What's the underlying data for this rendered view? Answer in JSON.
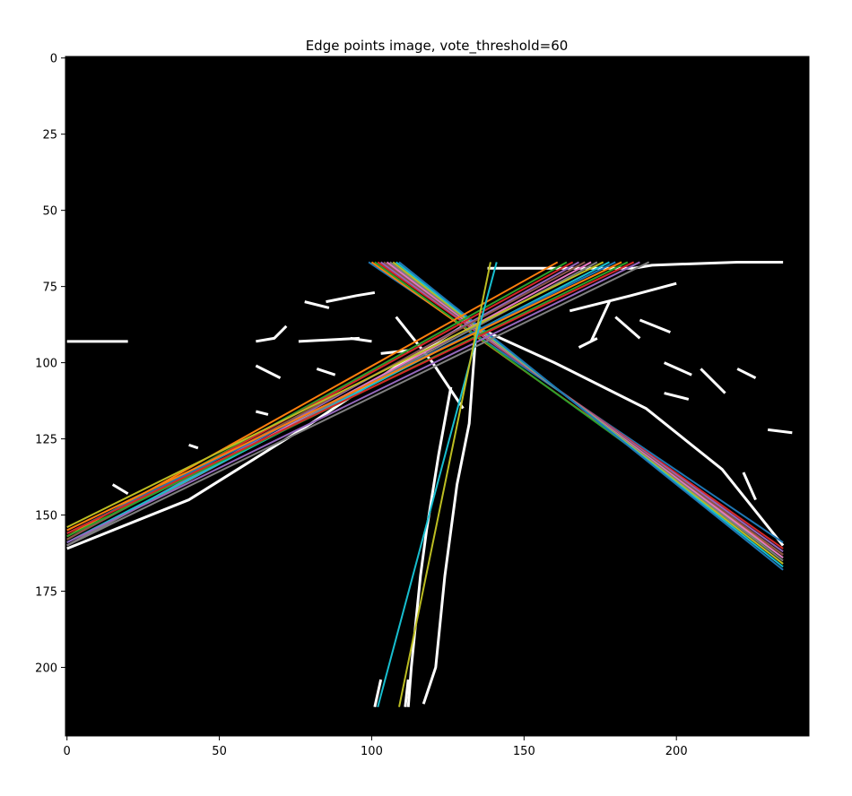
{
  "chart_data": {
    "type": "image_with_lines",
    "title": "Edge points image, vote_threshold=60",
    "xlabel": "",
    "ylabel": "",
    "xlim": [
      -0.5,
      243.5
    ],
    "ylim": [
      222.5,
      -0.5
    ],
    "x_ticks": [
      0,
      50,
      100,
      150,
      200
    ],
    "y_ticks": [
      0,
      25,
      50,
      75,
      100,
      125,
      150,
      175,
      200
    ],
    "grid": false,
    "background": "#000000",
    "edge_color": "#ffffff",
    "edge_segments": [
      [
        [
          138,
          69
        ],
        [
          186,
          69
        ],
        [
          192,
          68
        ],
        [
          220,
          67
        ],
        [
          235,
          67
        ]
      ],
      [
        [
          200,
          74
        ],
        [
          185,
          78
        ],
        [
          165,
          83
        ]
      ],
      [
        [
          108,
          85
        ],
        [
          120,
          100
        ],
        [
          130,
          115
        ]
      ],
      [
        [
          126,
          108
        ],
        [
          122,
          130
        ],
        [
          118,
          155
        ],
        [
          116,
          170
        ],
        [
          113,
          200
        ],
        [
          112,
          213
        ]
      ],
      [
        [
          134,
          93
        ],
        [
          132,
          120
        ],
        [
          128,
          140
        ],
        [
          124,
          170
        ],
        [
          121,
          200
        ],
        [
          117,
          212
        ]
      ],
      [
        [
          103,
          204
        ],
        [
          101,
          213
        ]
      ],
      [
        [
          112,
          204
        ],
        [
          111,
          213
        ]
      ],
      [
        [
          0,
          161
        ],
        [
          40,
          145
        ],
        [
          80,
          120
        ],
        [
          110,
          100
        ],
        [
          130,
          88
        ]
      ],
      [
        [
          138,
          90
        ],
        [
          160,
          100
        ],
        [
          190,
          115
        ],
        [
          215,
          135
        ],
        [
          235,
          160
        ]
      ],
      [
        [
          85,
          80
        ],
        [
          95,
          78
        ],
        [
          101,
          77
        ]
      ],
      [
        [
          72,
          88
        ],
        [
          68,
          92
        ],
        [
          62,
          93
        ]
      ],
      [
        [
          76,
          93
        ],
        [
          96,
          92
        ]
      ],
      [
        [
          78,
          80
        ],
        [
          86,
          82
        ]
      ],
      [
        [
          93,
          92
        ],
        [
          100,
          93
        ]
      ],
      [
        [
          103,
          97
        ],
        [
          112,
          96
        ]
      ],
      [
        [
          0,
          93
        ],
        [
          20,
          93
        ]
      ],
      [
        [
          62,
          101
        ],
        [
          70,
          105
        ]
      ],
      [
        [
          82,
          102
        ],
        [
          88,
          104
        ]
      ],
      [
        [
          62,
          116
        ],
        [
          66,
          117
        ]
      ],
      [
        [
          40,
          127
        ],
        [
          43,
          128
        ]
      ],
      [
        [
          20,
          143
        ],
        [
          15,
          140
        ]
      ],
      [
        [
          178,
          80
        ],
        [
          172,
          93
        ]
      ],
      [
        [
          180,
          85
        ],
        [
          188,
          92
        ]
      ],
      [
        [
          196,
          100
        ],
        [
          205,
          104
        ]
      ],
      [
        [
          196,
          110
        ],
        [
          204,
          112
        ]
      ],
      [
        [
          208,
          102
        ],
        [
          216,
          110
        ]
      ],
      [
        [
          220,
          102
        ],
        [
          226,
          105
        ]
      ],
      [
        [
          222,
          136
        ],
        [
          226,
          145
        ]
      ],
      [
        [
          230,
          122
        ],
        [
          238,
          123
        ]
      ],
      [
        [
          188,
          86
        ],
        [
          198,
          90
        ]
      ],
      [
        [
          174,
          92
        ],
        [
          168,
          95
        ]
      ]
    ],
    "series": [
      {
        "color": "#1f77b4",
        "values": [
          [
            99,
            67
          ],
          [
            235,
            159
          ]
        ]
      },
      {
        "color": "#ff7f0e",
        "values": [
          [
            100,
            67
          ],
          [
            235,
            163
          ]
        ]
      },
      {
        "color": "#2ca02c",
        "values": [
          [
            101,
            67
          ],
          [
            235,
            164
          ]
        ]
      },
      {
        "color": "#d62728",
        "values": [
          [
            102,
            67
          ],
          [
            235,
            161
          ]
        ]
      },
      {
        "color": "#9467bd",
        "values": [
          [
            103,
            67
          ],
          [
            235,
            162
          ]
        ]
      },
      {
        "color": "#8c564b",
        "values": [
          [
            104,
            67
          ],
          [
            235,
            163
          ]
        ]
      },
      {
        "color": "#e377c2",
        "values": [
          [
            105,
            67
          ],
          [
            235,
            164
          ]
        ]
      },
      {
        "color": "#7f7f7f",
        "values": [
          [
            106,
            67
          ],
          [
            235,
            165
          ]
        ]
      },
      {
        "color": "#bcbd22",
        "values": [
          [
            107,
            67
          ],
          [
            235,
            166
          ]
        ]
      },
      {
        "color": "#17becf",
        "values": [
          [
            108,
            67
          ],
          [
            235,
            167
          ]
        ]
      },
      {
        "color": "#1f77b4",
        "values": [
          [
            109,
            67
          ],
          [
            235,
            168
          ]
        ]
      },
      {
        "color": "#ff7f0e",
        "values": [
          [
            161,
            67
          ],
          [
            0,
            157
          ]
        ]
      },
      {
        "color": "#2ca02c",
        "values": [
          [
            164,
            67
          ],
          [
            0,
            158
          ]
        ]
      },
      {
        "color": "#d62728",
        "values": [
          [
            166,
            67
          ],
          [
            0,
            158
          ]
        ]
      },
      {
        "color": "#9467bd",
        "values": [
          [
            168,
            67
          ],
          [
            0,
            160
          ]
        ]
      },
      {
        "color": "#8c564b",
        "values": [
          [
            170,
            67
          ],
          [
            0,
            158
          ]
        ]
      },
      {
        "color": "#e377c2",
        "values": [
          [
            172,
            67
          ],
          [
            0,
            160
          ]
        ]
      },
      {
        "color": "#7f7f7f",
        "values": [
          [
            174,
            67
          ],
          [
            0,
            160
          ]
        ]
      },
      {
        "color": "#bcbd22",
        "values": [
          [
            176,
            67
          ],
          [
            0,
            154
          ]
        ]
      },
      {
        "color": "#17becf",
        "values": [
          [
            178,
            67
          ],
          [
            0,
            159
          ]
        ]
      },
      {
        "color": "#1f77b4",
        "values": [
          [
            180,
            67
          ],
          [
            0,
            156
          ]
        ]
      },
      {
        "color": "#ff7f0e",
        "values": [
          [
            182,
            67
          ],
          [
            0,
            155
          ]
        ]
      },
      {
        "color": "#2ca02c",
        "values": [
          [
            184,
            67
          ],
          [
            0,
            157
          ]
        ]
      },
      {
        "color": "#d62728",
        "values": [
          [
            186,
            67
          ],
          [
            0,
            156
          ]
        ]
      },
      {
        "color": "#9467bd",
        "values": [
          [
            188,
            67
          ],
          [
            0,
            159
          ]
        ]
      },
      {
        "color": "#7f7f7f",
        "values": [
          [
            191,
            67
          ],
          [
            0,
            160
          ]
        ]
      },
      {
        "color": "#17becf",
        "values": [
          [
            102,
            213
          ],
          [
            141,
            67
          ]
        ]
      },
      {
        "color": "#bcbd22",
        "values": [
          [
            109,
            213
          ],
          [
            139,
            67
          ]
        ]
      }
    ]
  }
}
